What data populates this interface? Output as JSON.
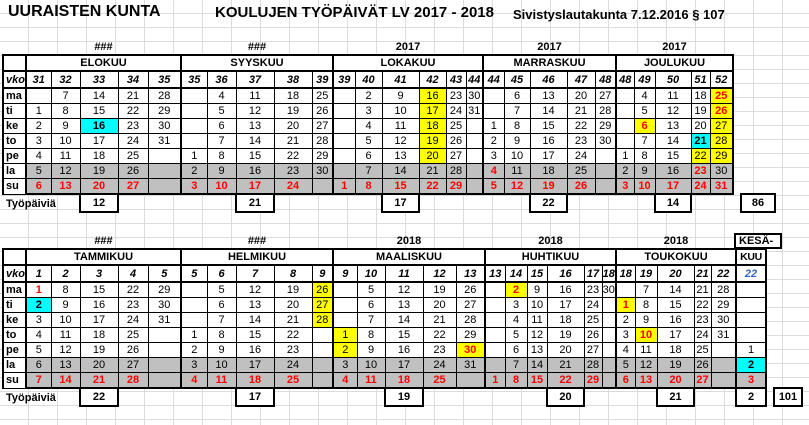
{
  "title": {
    "municipality": "UURAISTEN KUNTA",
    "main": "KOULUJEN TYÖPÄIVÄT LV 2017 - 2018",
    "decision": "Sivistyslautakunta 7.12.2016 § 107"
  },
  "labels": {
    "week": "vko",
    "days": [
      "ma",
      "ti",
      "ke",
      "to",
      "pe",
      "la",
      "su"
    ],
    "workdays": "Työpäiviä"
  },
  "colors": {
    "highlight_cyan": "#00FFFF",
    "highlight_yellow": "#FFFF00",
    "weekend_gray": "#C0C0C0",
    "holiday_red": "#FF0000",
    "june_week_blue": "#3366CC"
  },
  "terms": [
    {
      "name": "autumn",
      "total": 86,
      "months": [
        {
          "name": "ELOKUU",
          "year_label": "###",
          "weeks": [
            31,
            32,
            33,
            34,
            35
          ],
          "workdays": 12,
          "workdays_col": 2,
          "rows": [
            [
              "",
              7,
              14,
              21,
              28
            ],
            [
              1,
              8,
              15,
              22,
              29
            ],
            [
              2,
              9,
              {
                "v": 16,
                "bg": "cyan"
              },
              23,
              30
            ],
            [
              3,
              10,
              17,
              24,
              31
            ],
            [
              4,
              11,
              18,
              25,
              ""
            ],
            [
              5,
              12,
              19,
              26,
              ""
            ],
            [
              {
                "v": 6,
                "c": "red"
              },
              {
                "v": 13,
                "c": "red"
              },
              {
                "v": 20,
                "c": "red"
              },
              {
                "v": 27,
                "c": "red"
              },
              ""
            ]
          ]
        },
        {
          "name": "SYYSKUU",
          "year_label": "###",
          "weeks": [
            35,
            36,
            37,
            38,
            39
          ],
          "workdays": 21,
          "workdays_col": 2,
          "rows": [
            [
              "",
              4,
              11,
              18,
              25
            ],
            [
              "",
              5,
              12,
              19,
              26
            ],
            [
              "",
              6,
              13,
              20,
              27
            ],
            [
              "",
              7,
              14,
              21,
              28
            ],
            [
              1,
              8,
              15,
              22,
              29
            ],
            [
              2,
              9,
              16,
              23,
              30
            ],
            [
              {
                "v": 3,
                "c": "red"
              },
              {
                "v": 10,
                "c": "red"
              },
              {
                "v": 17,
                "c": "red"
              },
              {
                "v": 24,
                "c": "red"
              },
              ""
            ]
          ]
        },
        {
          "name": "LOKAKUU",
          "year_label": "2017",
          "weeks": [
            39,
            40,
            41,
            42,
            43,
            44
          ],
          "workdays": 17,
          "workdays_col": 2,
          "rows": [
            [
              "",
              2,
              9,
              {
                "v": 16,
                "bg": "yellow"
              },
              23,
              30
            ],
            [
              "",
              3,
              10,
              {
                "v": 17,
                "bg": "yellow"
              },
              24,
              31
            ],
            [
              "",
              4,
              11,
              {
                "v": 18,
                "bg": "yellow"
              },
              25,
              ""
            ],
            [
              "",
              5,
              12,
              {
                "v": 19,
                "bg": "yellow"
              },
              26,
              ""
            ],
            [
              "",
              6,
              13,
              {
                "v": 20,
                "bg": "yellow"
              },
              27,
              ""
            ],
            [
              "",
              7,
              14,
              21,
              28,
              ""
            ],
            [
              {
                "v": 1,
                "c": "red"
              },
              {
                "v": 8,
                "c": "red"
              },
              {
                "v": 15,
                "c": "red"
              },
              {
                "v": 22,
                "c": "red"
              },
              {
                "v": 29,
                "c": "red"
              },
              ""
            ]
          ]
        },
        {
          "name": "MARRASKUU",
          "year_label": "2017",
          "weeks": [
            44,
            45,
            46,
            47,
            48
          ],
          "workdays": 22,
          "workdays_col": 2,
          "rows": [
            [
              "",
              6,
              13,
              20,
              27
            ],
            [
              "",
              7,
              14,
              21,
              28
            ],
            [
              1,
              8,
              15,
              22,
              29
            ],
            [
              2,
              9,
              16,
              23,
              30
            ],
            [
              3,
              10,
              17,
              24,
              ""
            ],
            [
              {
                "v": 4,
                "c": "red"
              },
              11,
              18,
              25,
              ""
            ],
            [
              {
                "v": 5,
                "c": "red"
              },
              {
                "v": 12,
                "c": "red"
              },
              {
                "v": 19,
                "c": "red"
              },
              {
                "v": 26,
                "c": "red"
              },
              ""
            ]
          ]
        },
        {
          "name": "JOULUKUU",
          "year_label": "2017",
          "weeks": [
            48,
            49,
            50,
            51,
            52
          ],
          "workdays": 14,
          "workdays_col": 2,
          "rows": [
            [
              "",
              4,
              11,
              18,
              {
                "v": 25,
                "bg": "yellow",
                "c": "red"
              }
            ],
            [
              "",
              5,
              12,
              19,
              {
                "v": 26,
                "bg": "yellow",
                "c": "red"
              }
            ],
            [
              "",
              {
                "v": 6,
                "bg": "yellow",
                "c": "red"
              },
              13,
              20,
              {
                "v": 27,
                "bg": "yellow"
              }
            ],
            [
              "",
              7,
              14,
              {
                "v": 21,
                "bg": "cyan"
              },
              {
                "v": 28,
                "bg": "yellow"
              }
            ],
            [
              1,
              8,
              15,
              {
                "v": 22,
                "bg": "yellow"
              },
              {
                "v": 29,
                "bg": "yellow"
              }
            ],
            [
              2,
              9,
              16,
              {
                "v": 23,
                "c": "red"
              },
              30
            ],
            [
              {
                "v": 3,
                "c": "red"
              },
              {
                "v": 10,
                "c": "red"
              },
              {
                "v": 17,
                "c": "red"
              },
              {
                "v": 24,
                "c": "red"
              },
              {
                "v": 31,
                "c": "red"
              }
            ]
          ]
        }
      ]
    },
    {
      "name": "spring",
      "total": 101,
      "months": [
        {
          "name": "TAMMIKUU",
          "year_label": "###",
          "weeks": [
            1,
            2,
            3,
            4,
            5
          ],
          "workdays": 22,
          "workdays_col": 2,
          "rows": [
            [
              {
                "v": 1,
                "c": "red"
              },
              8,
              15,
              22,
              29
            ],
            [
              {
                "v": 2,
                "bg": "cyan"
              },
              9,
              16,
              23,
              30
            ],
            [
              3,
              10,
              17,
              24,
              31
            ],
            [
              4,
              11,
              18,
              25,
              ""
            ],
            [
              5,
              12,
              19,
              26,
              ""
            ],
            [
              6,
              13,
              20,
              27,
              ""
            ],
            [
              {
                "v": 7,
                "c": "red"
              },
              {
                "v": 14,
                "c": "red"
              },
              {
                "v": 21,
                "c": "red"
              },
              {
                "v": 28,
                "c": "red"
              },
              ""
            ]
          ]
        },
        {
          "name": "HELMIKUU",
          "year_label": "###",
          "weeks": [
            5,
            6,
            7,
            8,
            9
          ],
          "workdays": 17,
          "workdays_col": 2,
          "rows": [
            [
              "",
              5,
              12,
              19,
              {
                "v": 26,
                "bg": "yellow"
              }
            ],
            [
              "",
              6,
              13,
              20,
              {
                "v": 27,
                "bg": "yellow"
              }
            ],
            [
              "",
              7,
              14,
              21,
              {
                "v": 28,
                "bg": "yellow"
              }
            ],
            [
              1,
              8,
              15,
              22,
              ""
            ],
            [
              2,
              9,
              16,
              23,
              ""
            ],
            [
              3,
              10,
              17,
              24,
              ""
            ],
            [
              {
                "v": 4,
                "c": "red"
              },
              {
                "v": 11,
                "c": "red"
              },
              {
                "v": 18,
                "c": "red"
              },
              {
                "v": 25,
                "c": "red"
              },
              ""
            ]
          ]
        },
        {
          "name": "MAALISKUU",
          "year_label": "2018",
          "weeks": [
            9,
            10,
            11,
            12,
            13
          ],
          "workdays": 19,
          "workdays_col": 2,
          "rows": [
            [
              "",
              5,
              12,
              19,
              26
            ],
            [
              "",
              6,
              13,
              20,
              27
            ],
            [
              "",
              7,
              14,
              21,
              28
            ],
            [
              {
                "v": 1,
                "bg": "yellow"
              },
              8,
              15,
              22,
              29
            ],
            [
              {
                "v": 2,
                "bg": "yellow"
              },
              9,
              16,
              23,
              {
                "v": 30,
                "bg": "yellow",
                "c": "red"
              }
            ],
            [
              3,
              10,
              17,
              24,
              31
            ],
            [
              {
                "v": 4,
                "c": "red"
              },
              {
                "v": 11,
                "c": "red"
              },
              {
                "v": 18,
                "c": "red"
              },
              {
                "v": 25,
                "c": "red"
              },
              ""
            ]
          ]
        },
        {
          "name": "HUHTIKUU",
          "year_label": "2018",
          "weeks": [
            13,
            14,
            15,
            16,
            17,
            18
          ],
          "workdays": 20,
          "workdays_col": 3,
          "rows": [
            [
              "",
              {
                "v": 2,
                "bg": "yellow",
                "c": "red"
              },
              9,
              16,
              23,
              30
            ],
            [
              "",
              3,
              10,
              17,
              24,
              ""
            ],
            [
              "",
              4,
              11,
              18,
              25,
              ""
            ],
            [
              "",
              5,
              12,
              19,
              26,
              ""
            ],
            [
              "",
              6,
              13,
              20,
              27,
              ""
            ],
            [
              "",
              7,
              14,
              21,
              28,
              ""
            ],
            [
              {
                "v": 1,
                "c": "red"
              },
              {
                "v": 8,
                "c": "red"
              },
              {
                "v": 15,
                "c": "red"
              },
              {
                "v": 22,
                "c": "red"
              },
              {
                "v": 29,
                "c": "red"
              },
              ""
            ]
          ]
        },
        {
          "name": "TOUKOKUU",
          "year_label": "2018",
          "weeks": [
            18,
            19,
            20,
            21,
            22
          ],
          "workdays": 21,
          "workdays_col": 2,
          "rows": [
            [
              "",
              7,
              14,
              21,
              28
            ],
            [
              {
                "v": 1,
                "bg": "yellow",
                "c": "red"
              },
              8,
              15,
              22,
              29
            ],
            [
              2,
              9,
              16,
              23,
              30
            ],
            [
              3,
              {
                "v": 10,
                "bg": "yellow",
                "c": "red"
              },
              17,
              24,
              31
            ],
            [
              4,
              11,
              18,
              25,
              ""
            ],
            [
              5,
              12,
              19,
              26,
              ""
            ],
            [
              {
                "v": 6,
                "c": "red"
              },
              {
                "v": 13,
                "c": "red"
              },
              {
                "v": 20,
                "c": "red"
              },
              {
                "v": 27,
                "c": "red"
              },
              ""
            ]
          ]
        },
        {
          "name": "KUU",
          "year_label": "KESÄ-",
          "weeks": [
            {
              "v": 22,
              "c": "blue"
            }
          ],
          "workdays": 2,
          "workdays_col": 0,
          "rows": [
            [
              ""
            ],
            [
              ""
            ],
            [
              ""
            ],
            [
              ""
            ],
            [
              1
            ],
            [
              {
                "v": 2,
                "bg": "cyan"
              }
            ],
            [
              {
                "v": 3,
                "c": "red"
              }
            ]
          ]
        }
      ]
    }
  ]
}
